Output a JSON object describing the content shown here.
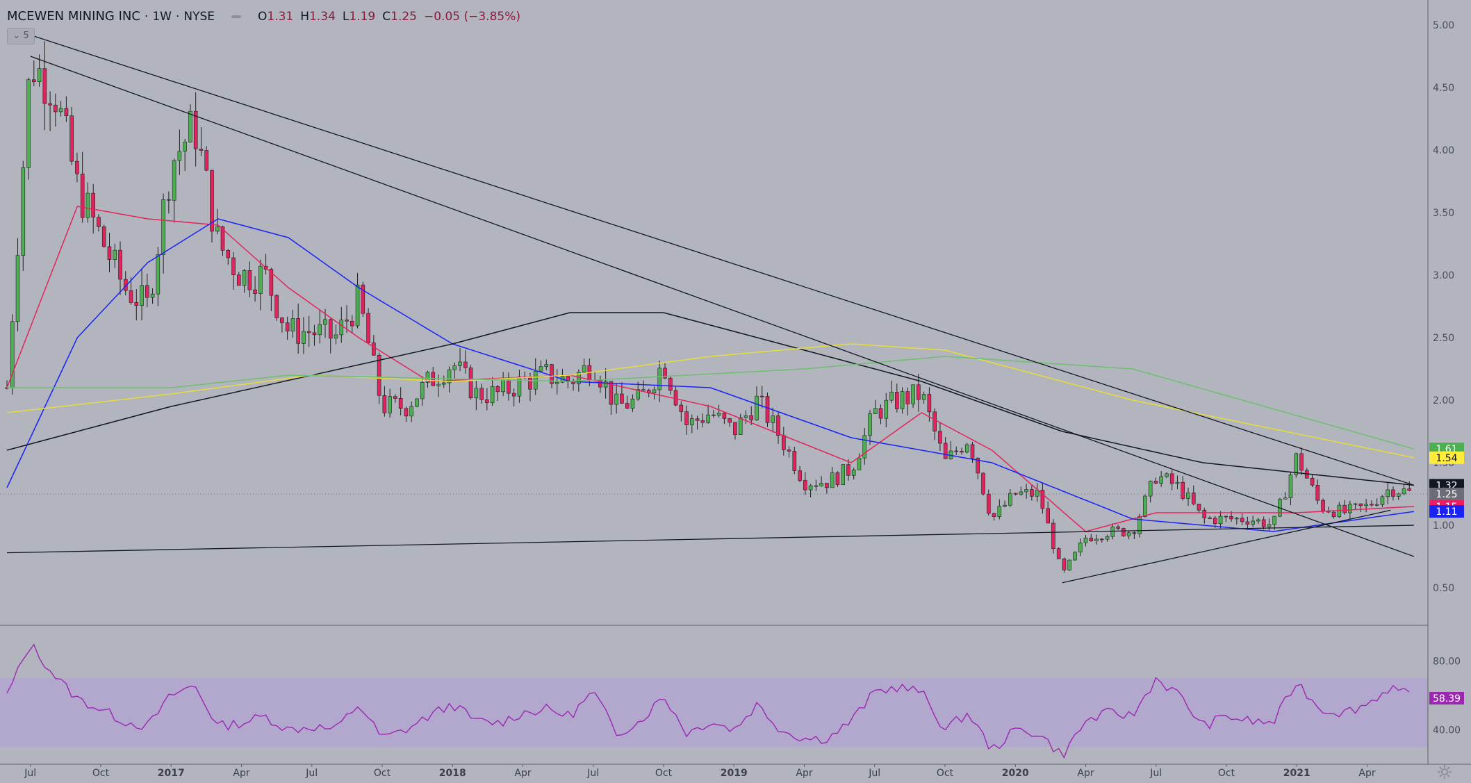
{
  "header": {
    "symbol": "MCEWEN MINING INC",
    "interval": "1W",
    "exchange": "NYSE",
    "open_label": "O",
    "open": "1.31",
    "high_label": "H",
    "high": "1.34",
    "low_label": "L",
    "low": "1.19",
    "close_label": "C",
    "close": "1.25",
    "change": "−0.05 (−3.85%)"
  },
  "collapse_button": {
    "label": "5"
  },
  "colors": {
    "background": "#b2b5be",
    "up_candle": "#4caf50",
    "down_candle": "#e0245e",
    "sma_red": "#e3245a",
    "sma_blue": "#1a23f5",
    "sma_black": "#131722",
    "sma_yellow": "#e6dd3b",
    "sma_green": "#6fbe6f",
    "rsi_line": "#9c27b0",
    "rsi_band": "#b39ddb"
  },
  "chart_data": [
    {
      "type": "candlestick",
      "title": "MCEWEN MINING INC · 1W · NYSE",
      "x_ticks": [
        "Jul",
        "Oct",
        "2017",
        "Apr",
        "Jul",
        "Oct",
        "2018",
        "Apr",
        "Jul",
        "Oct",
        "2019",
        "Apr",
        "Jul",
        "Oct",
        "2020",
        "Apr",
        "Jul",
        "Oct",
        "2021",
        "Apr"
      ],
      "x_range": [
        "2016-06",
        "2021-06"
      ],
      "y_ticks": [
        "5.00",
        "4.50",
        "4.00",
        "3.50",
        "3.00",
        "2.50",
        "2.00",
        "1.50",
        "1.00",
        "0.50"
      ],
      "ylim": [
        0.2,
        5.2
      ],
      "price_path": [
        [
          "2016-06",
          2.1
        ],
        [
          "2016-07",
          4.7
        ],
        [
          "2016-08",
          4.5
        ],
        [
          "2016-09",
          3.7
        ],
        [
          "2016-10",
          3.3
        ],
        [
          "2016-11",
          2.9
        ],
        [
          "2016-12",
          2.75
        ],
        [
          "2017-01",
          3.9
        ],
        [
          "2017-02",
          4.2
        ],
        [
          "2017-03",
          3.25
        ],
        [
          "2017-04",
          3.0
        ],
        [
          "2017-05",
          3.0
        ],
        [
          "2017-06",
          2.55
        ],
        [
          "2017-07",
          2.55
        ],
        [
          "2017-08",
          2.5
        ],
        [
          "2017-09",
          2.8
        ],
        [
          "2017-10",
          1.95
        ],
        [
          "2017-11",
          1.95
        ],
        [
          "2017-12",
          2.15
        ],
        [
          "2018-01",
          2.3
        ],
        [
          "2018-02",
          2.05
        ],
        [
          "2018-03",
          2.05
        ],
        [
          "2018-04",
          2.15
        ],
        [
          "2018-05",
          2.2
        ],
        [
          "2018-06",
          2.15
        ],
        [
          "2018-07",
          2.3
        ],
        [
          "2018-08",
          1.95
        ],
        [
          "2018-09",
          2.0
        ],
        [
          "2018-10",
          2.3
        ],
        [
          "2018-11",
          1.8
        ],
        [
          "2018-12",
          1.9
        ],
        [
          "2019-01",
          1.75
        ],
        [
          "2019-02",
          2.0
        ],
        [
          "2019-03",
          1.7
        ],
        [
          "2019-04",
          1.35
        ],
        [
          "2019-05",
          1.35
        ],
        [
          "2019-06",
          1.45
        ],
        [
          "2019-07",
          1.9
        ],
        [
          "2019-08",
          2.0
        ],
        [
          "2019-09",
          2.05
        ],
        [
          "2019-10",
          1.5
        ],
        [
          "2019-11",
          1.7
        ],
        [
          "2019-12",
          1.05
        ],
        [
          "2020-01",
          1.25
        ],
        [
          "2020-02",
          1.25
        ],
        [
          "2020-03",
          0.6
        ],
        [
          "2020-04",
          0.9
        ],
        [
          "2020-05",
          0.95
        ],
        [
          "2020-06",
          0.95
        ],
        [
          "2020-07",
          1.4
        ],
        [
          "2020-08",
          1.3
        ],
        [
          "2020-09",
          1.05
        ],
        [
          "2020-10",
          1.05
        ],
        [
          "2020-11",
          1.05
        ],
        [
          "2020-12",
          1.0
        ],
        [
          "2021-01",
          1.55
        ],
        [
          "2021-02",
          1.15
        ],
        [
          "2021-03",
          1.1
        ],
        [
          "2021-04",
          1.15
        ],
        [
          "2021-05",
          1.3
        ],
        [
          "2021-06",
          1.25
        ]
      ],
      "moving_averages": [
        {
          "color": "red",
          "last": "1.15",
          "path": [
            [
              "2016-06",
              2.1
            ],
            [
              "2016-09",
              3.55
            ],
            [
              "2016-12",
              3.45
            ],
            [
              "2017-03",
              3.4
            ],
            [
              "2017-06",
              2.9
            ],
            [
              "2017-09",
              2.5
            ],
            [
              "2017-12",
              2.15
            ],
            [
              "2018-06",
              2.2
            ],
            [
              "2018-12",
              1.95
            ],
            [
              "2019-06",
              1.5
            ],
            [
              "2019-09",
              1.9
            ],
            [
              "2019-12",
              1.6
            ],
            [
              "2020-04",
              0.95
            ],
            [
              "2020-07",
              1.1
            ],
            [
              "2020-10",
              1.1
            ],
            [
              "2021-01",
              1.1
            ],
            [
              "2021-06",
              1.15
            ]
          ]
        },
        {
          "color": "blue",
          "last": "1.11",
          "path": [
            [
              "2016-06",
              1.3
            ],
            [
              "2016-09",
              2.5
            ],
            [
              "2016-12",
              3.1
            ],
            [
              "2017-03",
              3.45
            ],
            [
              "2017-06",
              3.3
            ],
            [
              "2017-09",
              2.9
            ],
            [
              "2018-01",
              2.45
            ],
            [
              "2018-06",
              2.15
            ],
            [
              "2018-12",
              2.1
            ],
            [
              "2019-06",
              1.7
            ],
            [
              "2019-12",
              1.5
            ],
            [
              "2020-06",
              1.05
            ],
            [
              "2020-12",
              0.95
            ],
            [
              "2021-06",
              1.11
            ]
          ]
        },
        {
          "color": "black",
          "last": "1.32",
          "path": [
            [
              "2016-06",
              1.6
            ],
            [
              "2017-01",
              1.95
            ],
            [
              "2017-07",
              2.2
            ],
            [
              "2018-01",
              2.45
            ],
            [
              "2018-06",
              2.7
            ],
            [
              "2018-10",
              2.7
            ],
            [
              "2019-03",
              2.45
            ],
            [
              "2019-09",
              2.15
            ],
            [
              "2020-03",
              1.75
            ],
            [
              "2020-09",
              1.5
            ],
            [
              "2021-06",
              1.32
            ]
          ]
        },
        {
          "color": "yellow",
          "last": "1.54",
          "path": [
            [
              "2016-06",
              1.9
            ],
            [
              "2017-01",
              2.05
            ],
            [
              "2017-07",
              2.2
            ],
            [
              "2018-01",
              2.15
            ],
            [
              "2018-06",
              2.2
            ],
            [
              "2018-12",
              2.35
            ],
            [
              "2019-06",
              2.45
            ],
            [
              "2019-10",
              2.4
            ],
            [
              "2020-06",
              2.0
            ],
            [
              "2021-06",
              1.54
            ]
          ]
        },
        {
          "color": "green",
          "last": "1.61",
          "path": [
            [
              "2016-06",
              2.1
            ],
            [
              "2017-01",
              2.1
            ],
            [
              "2017-06",
              2.2
            ],
            [
              "2018-06",
              2.15
            ],
            [
              "2019-04",
              2.25
            ],
            [
              "2019-10",
              2.35
            ],
            [
              "2020-06",
              2.25
            ],
            [
              "2021-06",
              1.61
            ]
          ]
        }
      ],
      "price_labels": [
        {
          "value": "1.61",
          "color": "green"
        },
        {
          "value": "1.54",
          "color": "yellow"
        },
        {
          "value": "1.32",
          "color": "black"
        },
        {
          "value": "1.25",
          "color": "gray"
        },
        {
          "value": "1.15",
          "color": "red"
        },
        {
          "value": "1.11",
          "color": "blue"
        }
      ]
    },
    {
      "type": "line",
      "indicator": "RSI",
      "y_ticks": [
        "80.00",
        "40.00"
      ],
      "ylim": [
        20,
        100
      ],
      "band": [
        30,
        70
      ],
      "last": "58.39",
      "path": [
        [
          "2016-06",
          60
        ],
        [
          "2016-07",
          90
        ],
        [
          "2016-08",
          72
        ],
        [
          "2016-09",
          58
        ],
        [
          "2016-10",
          52
        ],
        [
          "2016-11",
          45
        ],
        [
          "2016-12",
          42
        ],
        [
          "2017-01",
          60
        ],
        [
          "2017-02",
          66
        ],
        [
          "2017-03",
          42
        ],
        [
          "2017-04",
          44
        ],
        [
          "2017-05",
          48
        ],
        [
          "2017-06",
          40
        ],
        [
          "2017-07",
          42
        ],
        [
          "2017-08",
          40
        ],
        [
          "2017-09",
          55
        ],
        [
          "2017-10",
          35
        ],
        [
          "2017-11",
          40
        ],
        [
          "2017-12",
          48
        ],
        [
          "2018-01",
          55
        ],
        [
          "2018-02",
          45
        ],
        [
          "2018-03",
          44
        ],
        [
          "2018-04",
          50
        ],
        [
          "2018-05",
          52
        ],
        [
          "2018-06",
          48
        ],
        [
          "2018-07",
          62
        ],
        [
          "2018-08",
          38
        ],
        [
          "2018-09",
          45
        ],
        [
          "2018-10",
          60
        ],
        [
          "2018-11",
          38
        ],
        [
          "2018-12",
          45
        ],
        [
          "2019-01",
          40
        ],
        [
          "2019-02",
          55
        ],
        [
          "2019-03",
          40
        ],
        [
          "2019-04",
          35
        ],
        [
          "2019-05",
          35
        ],
        [
          "2019-06",
          45
        ],
        [
          "2019-07",
          62
        ],
        [
          "2019-08",
          65
        ],
        [
          "2019-09",
          62
        ],
        [
          "2019-10",
          40
        ],
        [
          "2019-11",
          50
        ],
        [
          "2019-12",
          28
        ],
        [
          "2020-01",
          40
        ],
        [
          "2020-02",
          38
        ],
        [
          "2020-03",
          25
        ],
        [
          "2020-04",
          45
        ],
        [
          "2020-05",
          50
        ],
        [
          "2020-06",
          48
        ],
        [
          "2020-07",
          70
        ],
        [
          "2020-08",
          60
        ],
        [
          "2020-09",
          42
        ],
        [
          "2020-10",
          48
        ],
        [
          "2020-11",
          45
        ],
        [
          "2020-12",
          44
        ],
        [
          "2021-01",
          68
        ],
        [
          "2021-02",
          52
        ],
        [
          "2021-03",
          50
        ],
        [
          "2021-04",
          55
        ],
        [
          "2021-05",
          65
        ],
        [
          "2021-06",
          58.39
        ]
      ]
    }
  ]
}
